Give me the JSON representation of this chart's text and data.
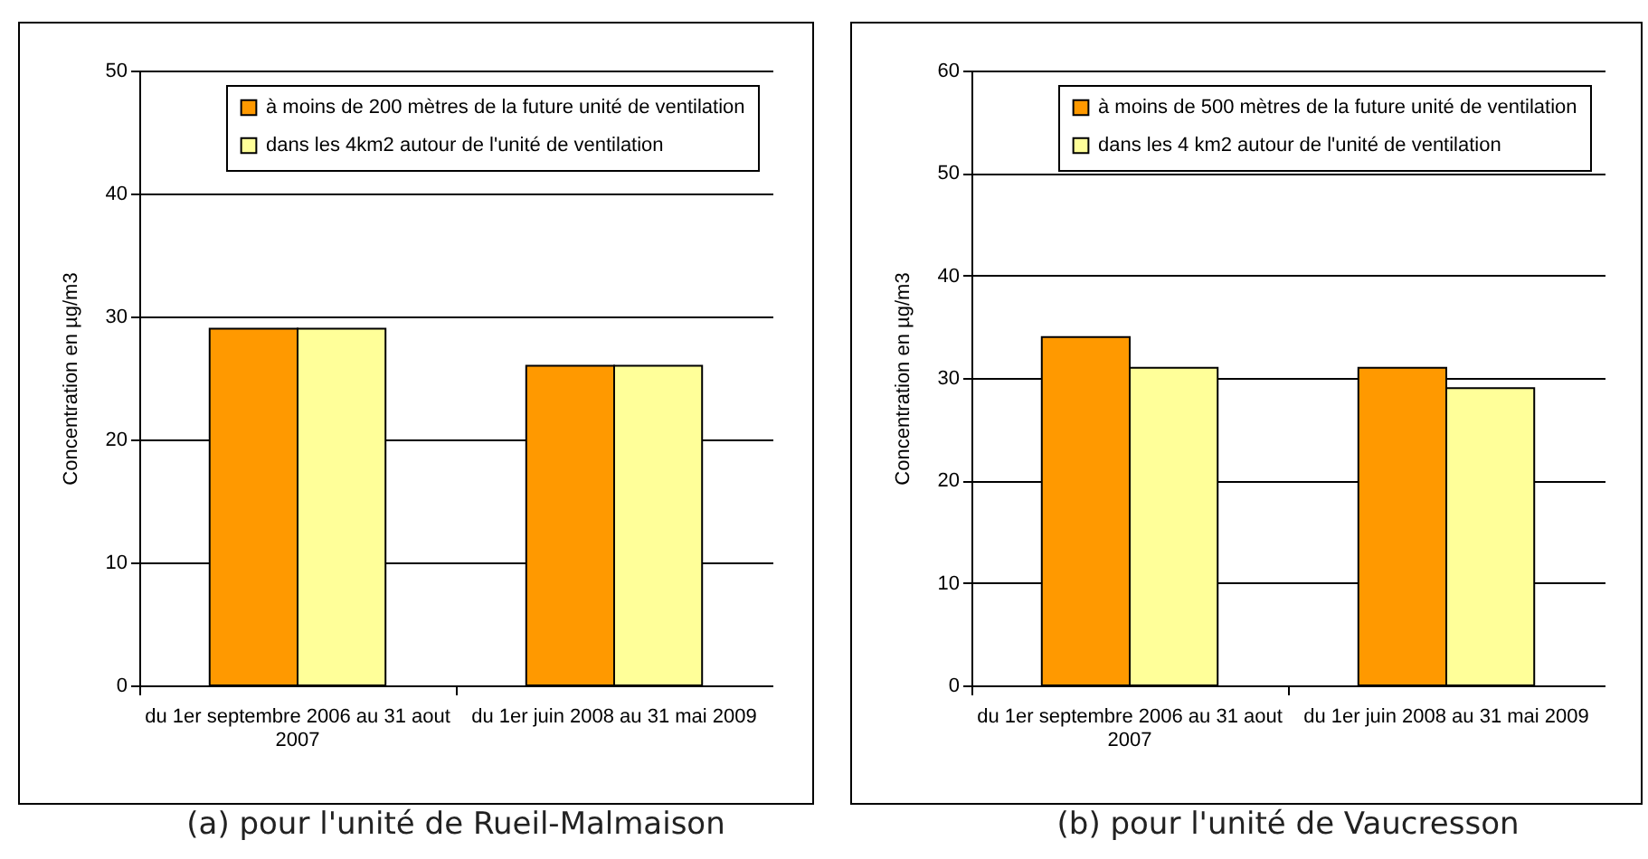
{
  "chart_data": [
    {
      "type": "bar",
      "title": "(a) pour l'unité de Rueil-Malmaison",
      "ylabel": "Concentration en µg/m3",
      "categories": [
        "du 1er septembre 2006 au 31 aout 2007",
        "du 1er juin 2008 au 31 mai 2009"
      ],
      "series": [
        {
          "name": "à moins de 200 mètres de la future unité de ventilation",
          "color": "#ff9900",
          "values": [
            29,
            26
          ]
        },
        {
          "name": "dans les 4km2 autour de l'unité de ventilation",
          "color": "#ffff99",
          "values": [
            29,
            26
          ]
        }
      ],
      "ylim": [
        0,
        50
      ],
      "yticks": [
        0,
        10,
        20,
        30,
        40,
        50
      ],
      "grid": "y",
      "legend": "top right"
    },
    {
      "type": "bar",
      "title": "(b) pour l'unité de Vaucresson",
      "ylabel": "Concentration en µg/m3",
      "categories": [
        "du 1er septembre 2006 au 31 aout 2007",
        "du 1er juin 2008 au 31 mai 2009"
      ],
      "series": [
        {
          "name": "à moins de 500 mètres de la future unité de ventilation",
          "color": "#ff9900",
          "values": [
            34,
            31
          ]
        },
        {
          "name": "dans les 4 km2 autour de l'unité de ventilation",
          "color": "#ffff99",
          "values": [
            31,
            29
          ]
        }
      ],
      "ylim": [
        0,
        60
      ],
      "yticks": [
        0,
        10,
        20,
        30,
        40,
        50,
        60
      ],
      "grid": "y",
      "legend": "top right"
    }
  ]
}
